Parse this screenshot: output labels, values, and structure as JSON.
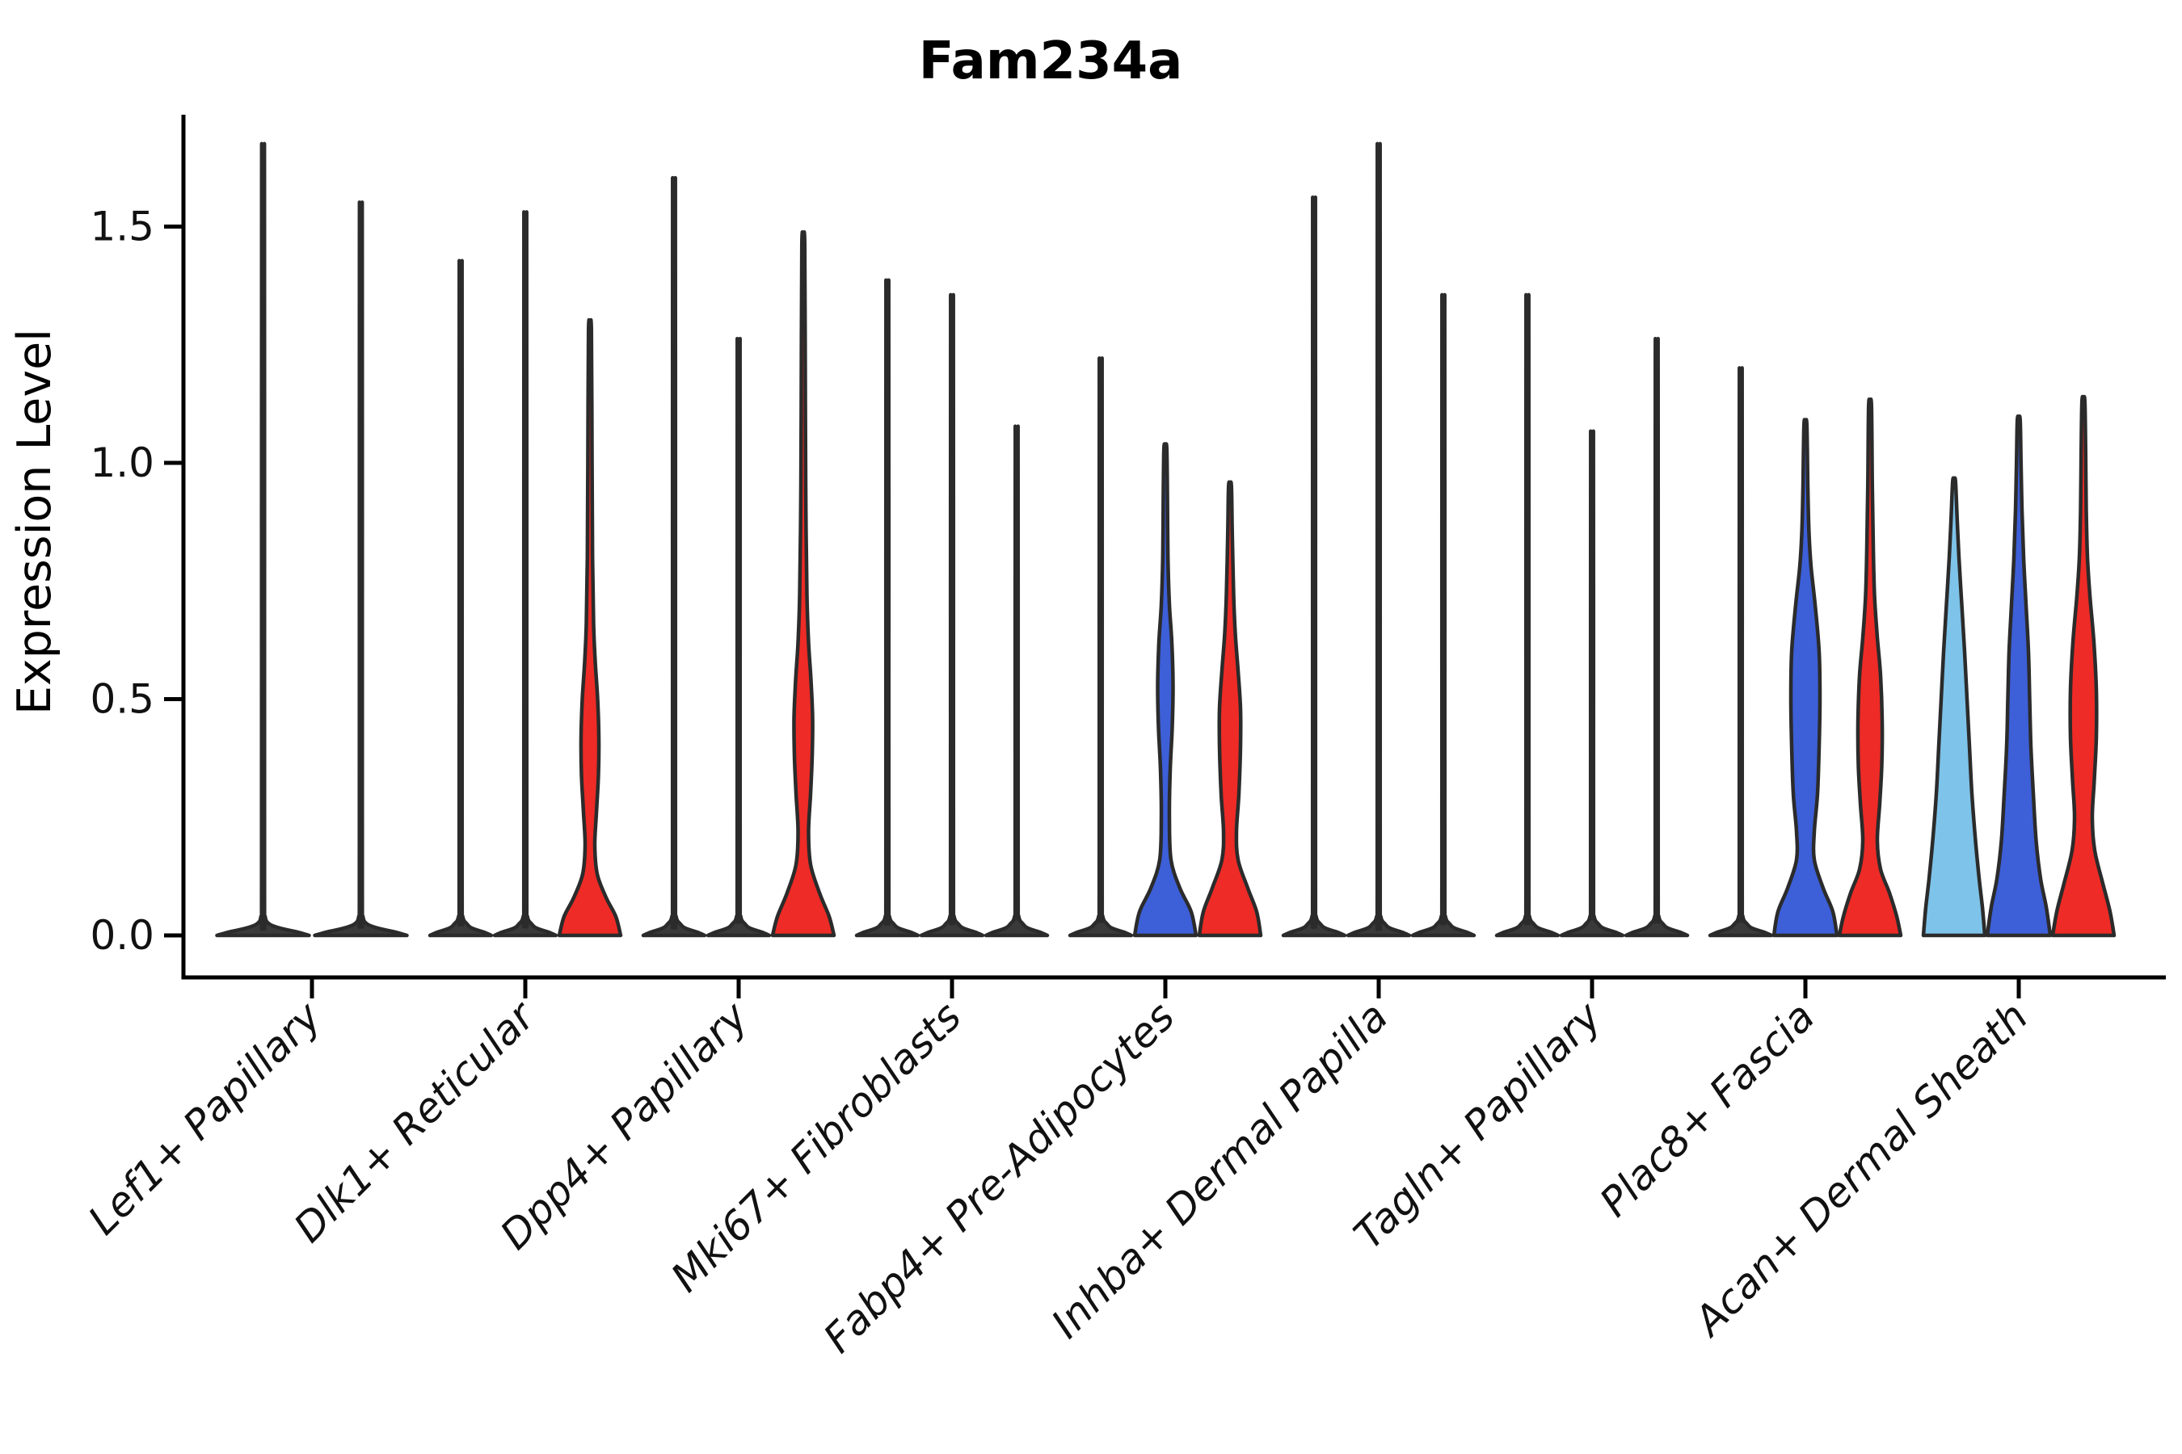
{
  "title": "Fam234a",
  "y_axis": {
    "label": "Expression Level",
    "ticks": [
      {
        "label": "0.0",
        "value": 0.0
      },
      {
        "label": "0.5",
        "value": 0.5
      },
      {
        "label": "1.0",
        "value": 1.0
      },
      {
        "label": "1.5",
        "value": 1.5
      }
    ]
  },
  "x_axis": {
    "tick_labels": [
      "Lef1+ Papillary",
      "Dlk1+ Reticular",
      "Dpp4+ Papillary",
      "Mki67+ Fibroblasts",
      "Fabp4+ Pre-Adipocytes",
      "Inhba+ Dermal Papilla",
      "Tagln+ Papillary",
      "Plac8+ Fascia",
      "Acan+ Dermal Sheath"
    ]
  },
  "colors": {
    "light_blue": "#7EC3E9",
    "blue": "#3D5FD8",
    "red": "#EE2B26",
    "collapsed_fill": "#3A3A3A",
    "outline": "#2B2B2B",
    "axis": "#000000"
  },
  "chart_data": {
    "type": "violin",
    "title": "Fam234a",
    "xlabel": "",
    "ylabel": "Expression Level",
    "ylim": [
      -0.09,
      1.74
    ],
    "yticks": [
      0.0,
      0.5,
      1.0,
      1.5
    ],
    "grid": false,
    "legend": "none",
    "note": "Split violin plot; profile entries are [expression_value, half_width_px]; collapsed violins are near-zero-width spikes with max = maximum expression",
    "categories": [
      "Lef1+ Papillary",
      "Dlk1+ Reticular",
      "Dpp4+ Papillary",
      "Mki67+ Fibroblasts",
      "Fabp4+ Pre-Adipocytes",
      "Inhba+ Dermal Papilla",
      "Tagln+ Papillary",
      "Plac8+ Fascia",
      "Acan+ Dermal Sheath"
    ],
    "groups": [
      {
        "category": "Lef1+ Papillary",
        "violins": [
          {
            "kind": "collapsed",
            "color_key": "collapsed_fill",
            "max": 1.65
          },
          {
            "kind": "collapsed",
            "color_key": "collapsed_fill",
            "max": 1.53
          }
        ]
      },
      {
        "category": "Dlk1+ Reticular",
        "violins": [
          {
            "kind": "collapsed",
            "color_key": "collapsed_fill",
            "max": 1.41
          },
          {
            "kind": "collapsed",
            "color_key": "collapsed_fill",
            "max": 1.51
          },
          {
            "kind": "shaped",
            "color_key": "red",
            "max": 1.28,
            "profile": [
              [
                0,
                38
              ],
              [
                0.04,
                32
              ],
              [
                0.08,
                20
              ],
              [
                0.13,
                9
              ],
              [
                0.19,
                6
              ],
              [
                0.26,
                8
              ],
              [
                0.34,
                10.5
              ],
              [
                0.42,
                11
              ],
              [
                0.5,
                9.5
              ],
              [
                0.58,
                6.5
              ],
              [
                0.66,
                4.5
              ],
              [
                0.8,
                3.2
              ],
              [
                1.0,
                2.6
              ],
              [
                1.28,
                1.8
              ]
            ]
          }
        ]
      },
      {
        "category": "Dpp4+ Papillary",
        "violins": [
          {
            "kind": "collapsed",
            "color_key": "collapsed_fill",
            "max": 1.58
          },
          {
            "kind": "collapsed",
            "color_key": "collapsed_fill",
            "max": 1.25
          },
          {
            "kind": "shaped",
            "color_key": "red",
            "max": 1.46,
            "profile": [
              [
                0,
                38
              ],
              [
                0.04,
                32
              ],
              [
                0.09,
                20
              ],
              [
                0.15,
                9
              ],
              [
                0.22,
                6.5
              ],
              [
                0.3,
                9
              ],
              [
                0.38,
                11
              ],
              [
                0.46,
                11.5
              ],
              [
                0.54,
                9.5
              ],
              [
                0.62,
                6.5
              ],
              [
                0.72,
                4.5
              ],
              [
                0.9,
                3.2
              ],
              [
                1.1,
                2.6
              ],
              [
                1.46,
                1.8
              ]
            ]
          }
        ]
      },
      {
        "category": "Mki67+ Fibroblasts",
        "violins": [
          {
            "kind": "collapsed",
            "color_key": "collapsed_fill",
            "max": 1.37
          },
          {
            "kind": "collapsed",
            "color_key": "collapsed_fill",
            "max": 1.34
          },
          {
            "kind": "collapsed",
            "color_key": "collapsed_fill",
            "max": 1.07
          }
        ]
      },
      {
        "category": "Fabp4+ Pre-Adipocytes",
        "violins": [
          {
            "kind": "collapsed",
            "color_key": "collapsed_fill",
            "max": 1.21
          },
          {
            "kind": "shaped",
            "color_key": "blue",
            "max": 1.03,
            "profile": [
              [
                0,
                38
              ],
              [
                0.05,
                32
              ],
              [
                0.1,
                18
              ],
              [
                0.16,
                7
              ],
              [
                0.25,
                5
              ],
              [
                0.35,
                6
              ],
              [
                0.44,
                8.5
              ],
              [
                0.53,
                9.5
              ],
              [
                0.62,
                8
              ],
              [
                0.7,
                5
              ],
              [
                0.8,
                3.2
              ],
              [
                0.92,
                2.6
              ],
              [
                1.03,
                1.8
              ]
            ]
          },
          {
            "kind": "shaped",
            "color_key": "red",
            "max": 0.95,
            "profile": [
              [
                0,
                38
              ],
              [
                0.05,
                33
              ],
              [
                0.1,
                22
              ],
              [
                0.16,
                10
              ],
              [
                0.22,
                8
              ],
              [
                0.3,
                11
              ],
              [
                0.4,
                13
              ],
              [
                0.48,
                13
              ],
              [
                0.56,
                10
              ],
              [
                0.64,
                6.5
              ],
              [
                0.72,
                4.5
              ],
              [
                0.85,
                2.8
              ],
              [
                0.95,
                1.8
              ]
            ]
          }
        ]
      },
      {
        "category": "Inhba+ Dermal Papilla",
        "violins": [
          {
            "kind": "collapsed",
            "color_key": "collapsed_fill",
            "max": 1.54
          },
          {
            "kind": "collapsed",
            "color_key": "collapsed_fill",
            "max": 1.65
          },
          {
            "kind": "collapsed",
            "color_key": "collapsed_fill",
            "max": 1.34
          }
        ]
      },
      {
        "category": "Tagln+ Papillary",
        "violins": [
          {
            "kind": "collapsed",
            "color_key": "collapsed_fill",
            "max": 1.34
          },
          {
            "kind": "collapsed",
            "color_key": "collapsed_fill",
            "max": 1.06
          },
          {
            "kind": "collapsed",
            "color_key": "collapsed_fill",
            "max": 1.25
          }
        ]
      },
      {
        "category": "Plac8+ Fascia",
        "violins": [
          {
            "kind": "collapsed",
            "color_key": "collapsed_fill",
            "max": 1.19
          },
          {
            "kind": "shaped",
            "color_key": "blue",
            "max": 1.08,
            "profile": [
              [
                0,
                39
              ],
              [
                0.05,
                34
              ],
              [
                0.1,
                22
              ],
              [
                0.16,
                11
              ],
              [
                0.22,
                11
              ],
              [
                0.3,
                15
              ],
              [
                0.4,
                17
              ],
              [
                0.5,
                18
              ],
              [
                0.6,
                17
              ],
              [
                0.7,
                12
              ],
              [
                0.78,
                7
              ],
              [
                0.85,
                4.5
              ],
              [
                0.95,
                3
              ],
              [
                1.08,
                1.8
              ]
            ]
          },
          {
            "kind": "shaped",
            "color_key": "red",
            "max": 1.12,
            "profile": [
              [
                0,
                38
              ],
              [
                0.04,
                33
              ],
              [
                0.09,
                24
              ],
              [
                0.14,
                13
              ],
              [
                0.2,
                9
              ],
              [
                0.28,
                12
              ],
              [
                0.36,
                14.5
              ],
              [
                0.45,
                15
              ],
              [
                0.55,
                13
              ],
              [
                0.63,
                9
              ],
              [
                0.72,
                5.5
              ],
              [
                0.82,
                4
              ],
              [
                0.95,
                2.8
              ],
              [
                1.12,
                1.8
              ]
            ]
          }
        ]
      },
      {
        "category": "Acan+ Dermal Sheath",
        "violins": [
          {
            "kind": "shaped",
            "color_key": "light_blue",
            "max": 0.96,
            "profile": [
              [
                0,
                38
              ],
              [
                0.06,
                35
              ],
              [
                0.12,
                31
              ],
              [
                0.2,
                26.5
              ],
              [
                0.3,
                22
              ],
              [
                0.4,
                19
              ],
              [
                0.5,
                16
              ],
              [
                0.6,
                13
              ],
              [
                0.7,
                9.5
              ],
              [
                0.8,
                6
              ],
              [
                0.88,
                3.8
              ],
              [
                0.96,
                1.8
              ]
            ]
          },
          {
            "kind": "shaped",
            "color_key": "blue",
            "max": 1.09,
            "profile": [
              [
                0,
                39
              ],
              [
                0.06,
                34
              ],
              [
                0.12,
                27
              ],
              [
                0.2,
                21.5
              ],
              [
                0.3,
                18
              ],
              [
                0.4,
                15
              ],
              [
                0.5,
                13.5
              ],
              [
                0.6,
                12
              ],
              [
                0.7,
                9
              ],
              [
                0.8,
                6
              ],
              [
                0.9,
                4
              ],
              [
                1.0,
                2.8
              ],
              [
                1.09,
                1.8
              ]
            ]
          },
          {
            "kind": "shaped",
            "color_key": "red",
            "max": 1.13,
            "profile": [
              [
                0,
                38
              ],
              [
                0.05,
                33
              ],
              [
                0.11,
                24
              ],
              [
                0.18,
                14
              ],
              [
                0.25,
                11
              ],
              [
                0.33,
                13.5
              ],
              [
                0.42,
                16
              ],
              [
                0.52,
                16
              ],
              [
                0.62,
                13
              ],
              [
                0.72,
                8
              ],
              [
                0.8,
                5
              ],
              [
                0.9,
                3.5
              ],
              [
                1.02,
                2.8
              ],
              [
                1.13,
                1.8
              ]
            ]
          }
        ]
      }
    ]
  }
}
